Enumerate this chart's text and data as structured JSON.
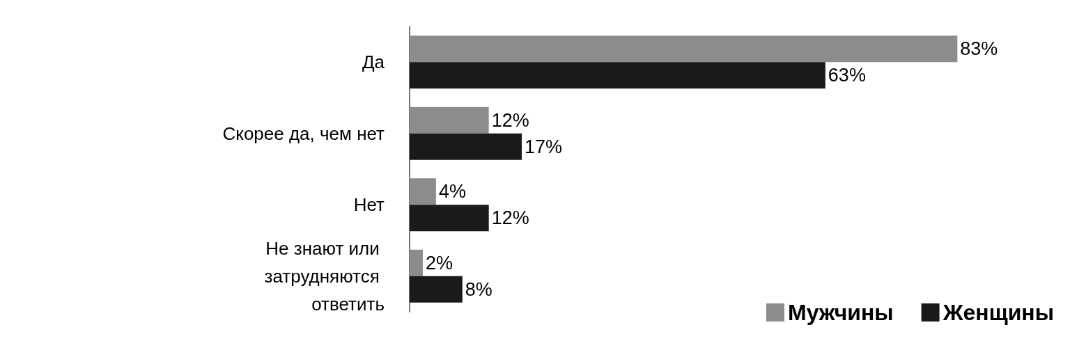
{
  "chart_data": {
    "type": "bar",
    "orientation": "horizontal",
    "categories": [
      "Да",
      "Скорее да, чем нет",
      "Нет",
      "Не знают или затрудняются ответить"
    ],
    "series": [
      {
        "name": "Мужчины",
        "color": "#8c8c8c",
        "values": [
          83,
          12,
          4,
          2
        ],
        "value_labels": [
          "83%",
          "12%",
          "4%",
          "2%"
        ]
      },
      {
        "name": "Женщины",
        "color": "#1a1a1a",
        "values": [
          63,
          17,
          12,
          8
        ],
        "value_labels": [
          "63%",
          "17%",
          "12%",
          "8%"
        ]
      }
    ],
    "legend": "bottom right"
  }
}
